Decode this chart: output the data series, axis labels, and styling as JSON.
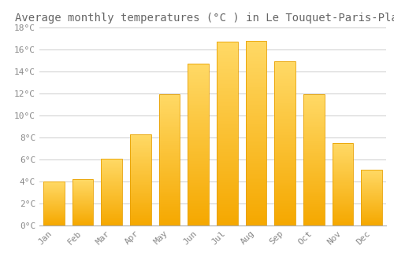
{
  "title": "Average monthly temperatures (°C ) in Le Touquet-Paris-Plage",
  "months": [
    "Jan",
    "Feb",
    "Mar",
    "Apr",
    "May",
    "Jun",
    "Jul",
    "Aug",
    "Sep",
    "Oct",
    "Nov",
    "Dec"
  ],
  "values": [
    4.0,
    4.2,
    6.1,
    8.3,
    11.9,
    14.7,
    16.7,
    16.8,
    14.9,
    11.9,
    7.5,
    5.1
  ],
  "bar_color_bottom": "#F5A800",
  "bar_color_top": "#FFD966",
  "bar_edge_color": "#E8A000",
  "background_color": "#FFFFFF",
  "grid_color": "#CCCCCC",
  "text_color": "#888888",
  "title_color": "#666666",
  "ylim": [
    0,
    18
  ],
  "ytick_step": 2,
  "title_fontsize": 10,
  "tick_fontsize": 8,
  "font_family": "monospace"
}
